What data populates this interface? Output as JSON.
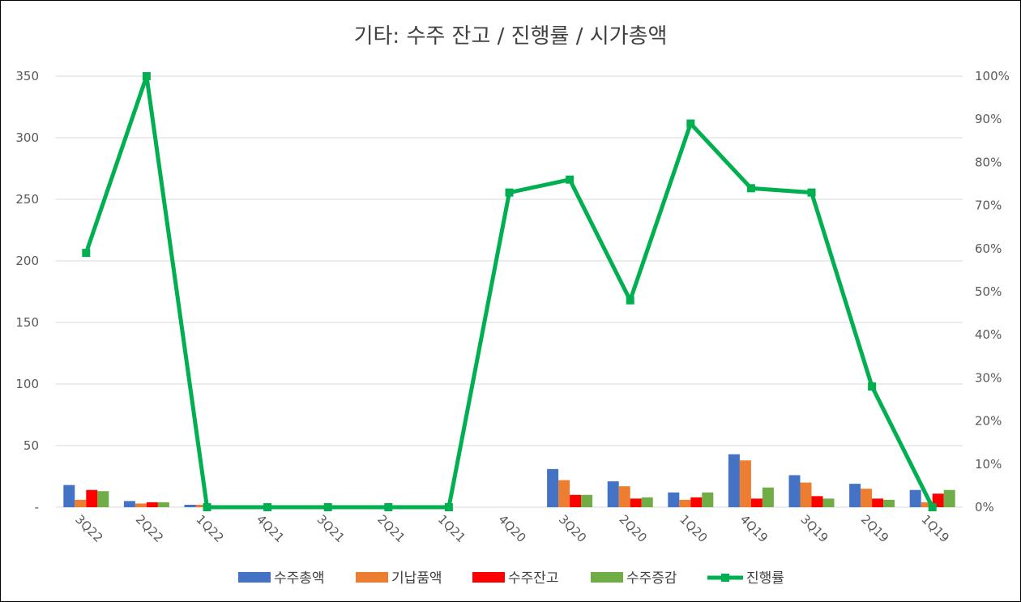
{
  "chart_data": {
    "type": "bar",
    "title": "기타: 수주 잔고 / 진행률 / 시가총액",
    "categories": [
      "3Q22",
      "2Q22",
      "1Q22",
      "4Q21",
      "3Q21",
      "2Q21",
      "1Q21",
      "4Q20",
      "3Q20",
      "2Q20",
      "1Q20",
      "4Q19",
      "3Q19",
      "2Q19",
      "1Q19"
    ],
    "left_axis": {
      "ylim": [
        0,
        350
      ],
      "ticks": [
        "-",
        "50",
        "100",
        "150",
        "200",
        "250",
        "300",
        "350"
      ]
    },
    "right_axis": {
      "ylim": [
        0,
        100
      ],
      "ticks": [
        "0%",
        "10%",
        "20%",
        "30%",
        "40%",
        "50%",
        "60%",
        "70%",
        "80%",
        "90%",
        "100%"
      ]
    },
    "series": [
      {
        "name": "수주총액",
        "type": "bar",
        "color": "#4472C4",
        "values": [
          18,
          5,
          2,
          0,
          0,
          0,
          0,
          0,
          31,
          21,
          12,
          43,
          26,
          19,
          14
        ]
      },
      {
        "name": "기납품액",
        "type": "bar",
        "color": "#ED7D31",
        "values": [
          6,
          3,
          2,
          0,
          0,
          0,
          0,
          0,
          22,
          17,
          6,
          38,
          20,
          15,
          4
        ]
      },
      {
        "name": "수주잔고",
        "type": "bar",
        "color": "#FF0000",
        "values": [
          14,
          4,
          0,
          0,
          0,
          0,
          0,
          0,
          10,
          7,
          8,
          7,
          9,
          7,
          11
        ]
      },
      {
        "name": "수주증감",
        "type": "bar",
        "color": "#70AD47",
        "values": [
          13,
          4,
          0,
          0,
          0,
          0,
          0,
          0,
          10,
          8,
          12,
          16,
          7,
          6,
          14
        ]
      },
      {
        "name": "진행률",
        "type": "line",
        "axis": "right",
        "color": "#00B050",
        "values": [
          59,
          100,
          0,
          0,
          0,
          0,
          0,
          73,
          76,
          48,
          89,
          74,
          73,
          28,
          0
        ]
      }
    ],
    "grid": true,
    "legend": "bottom"
  }
}
